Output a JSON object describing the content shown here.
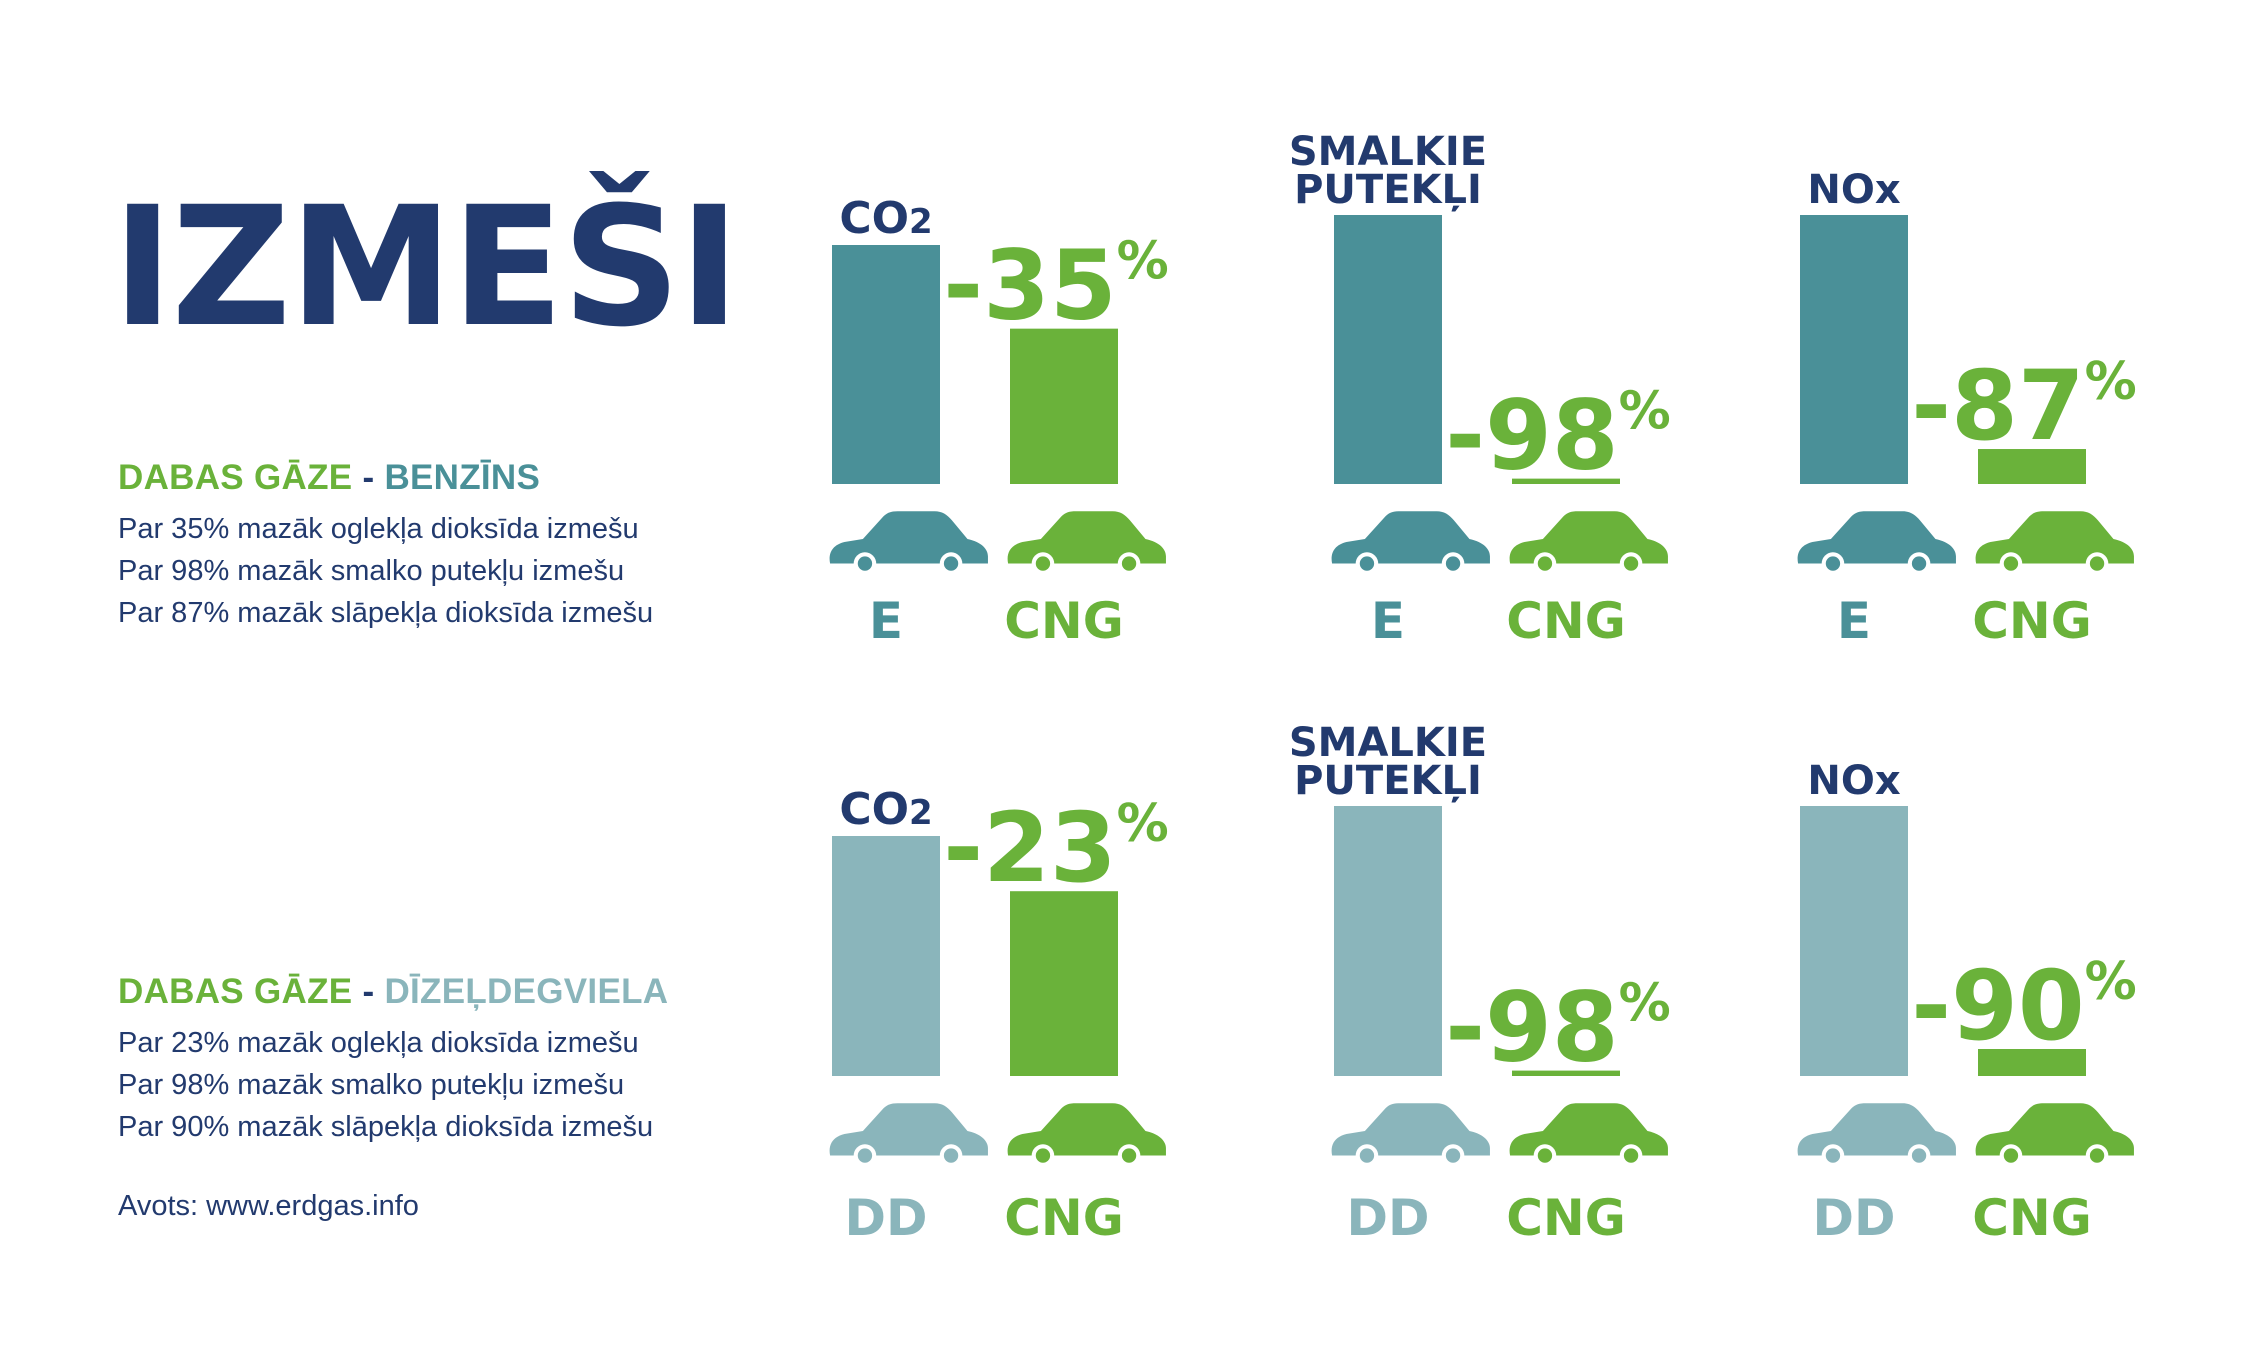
{
  "title": "IZMEŠI",
  "colors": {
    "navy": "#223a6e",
    "green": "#6ab23a",
    "teal_dark": "#4a9098",
    "teal_light": "#8ab5bb"
  },
  "legend_1": {
    "heading_gas": "DABAS GĀZE",
    "heading_sep": "-",
    "heading_fuel": "BENZĪNS",
    "lines": [
      "Par 35% mazāk oglekļa dioksīda izmešu",
      "Par 98% mazāk smalko putekļu izmešu",
      "Par 87% mazāk slāpekļa dioksīda izmešu"
    ]
  },
  "legend_2": {
    "heading_gas": "DABAS GĀZE",
    "heading_sep": "-",
    "heading_fuel": "DĪZEĻDEGVIELA",
    "lines": [
      "Par 23% mazāk oglekļa dioksīda izmešu",
      "Par 98% mazāk smalko putekļu izmešu",
      "Par 90% mazāk slāpekļa dioksīda izmešu"
    ]
  },
  "source": "Avots: www.erdgas.info",
  "car_icon": "car-icon",
  "chart_data": [
    {
      "type": "bar",
      "row": 0,
      "title": "CO2",
      "categories": [
        "E",
        "CNG"
      ],
      "values": [
        100,
        65
      ],
      "label": "-35%",
      "ylim": [
        0,
        100
      ]
    },
    {
      "type": "bar",
      "row": 0,
      "title": "SMALKIE PUTEKĻI",
      "categories": [
        "E",
        "CNG"
      ],
      "values": [
        100,
        2
      ],
      "label": "-98%",
      "ylim": [
        0,
        100
      ]
    },
    {
      "type": "bar",
      "row": 0,
      "title": "NOx",
      "categories": [
        "E",
        "CNG"
      ],
      "values": [
        100,
        13
      ],
      "label": "-87%",
      "ylim": [
        0,
        100
      ]
    },
    {
      "type": "bar",
      "row": 1,
      "title": "CO2",
      "categories": [
        "DD",
        "CNG"
      ],
      "values": [
        100,
        77
      ],
      "label": "-23%",
      "ylim": [
        0,
        100
      ]
    },
    {
      "type": "bar",
      "row": 1,
      "title": "SMALKIE PUTEKĻI",
      "categories": [
        "DD",
        "CNG"
      ],
      "values": [
        100,
        2
      ],
      "label": "-98%",
      "ylim": [
        0,
        100
      ]
    },
    {
      "type": "bar",
      "row": 1,
      "title": "NOx",
      "categories": [
        "DD",
        "CNG"
      ],
      "values": [
        100,
        10
      ],
      "label": "-90%",
      "ylim": [
        0,
        100
      ]
    }
  ]
}
